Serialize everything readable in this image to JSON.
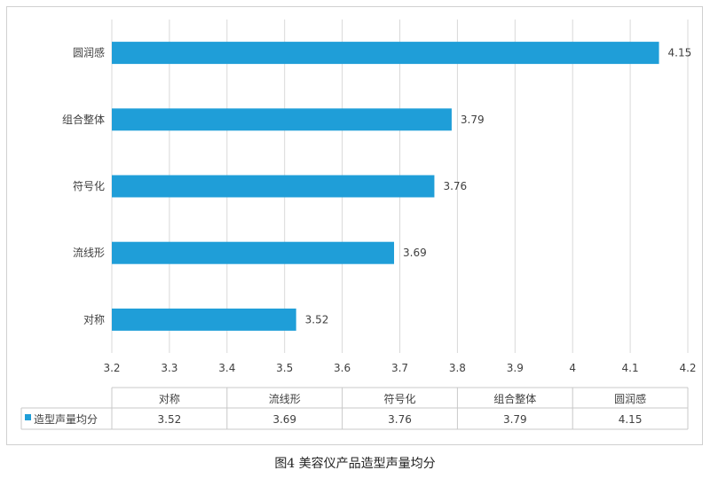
{
  "caption": "图4 美容仪产品造型声量均分",
  "chart_data": {
    "type": "bar",
    "orientation": "horizontal",
    "categories": [
      "圆润感",
      "组合整体",
      "符号化",
      "流线形",
      "对称"
    ],
    "series": [
      {
        "name": "造型声量均分",
        "values": [
          4.15,
          3.79,
          3.76,
          3.69,
          3.52
        ],
        "color": "#1f9ed8"
      }
    ],
    "x_ticks": [
      "3.2",
      "3.3",
      "3.4",
      "3.5",
      "3.6",
      "3.7",
      "3.8",
      "3.9",
      "4",
      "4.1",
      "4.2"
    ],
    "xlim": [
      3.2,
      4.2
    ],
    "grid": "vertical",
    "data_labels": [
      "4.15",
      "3.79",
      "3.76",
      "3.69",
      "3.52"
    ],
    "table": {
      "columns": [
        "对称",
        "流线形",
        "符号化",
        "组合整体",
        "圆润感"
      ],
      "row_label": "造型声量均分",
      "values": [
        "3.52",
        "3.69",
        "3.76",
        "3.79",
        "4.15"
      ]
    }
  }
}
